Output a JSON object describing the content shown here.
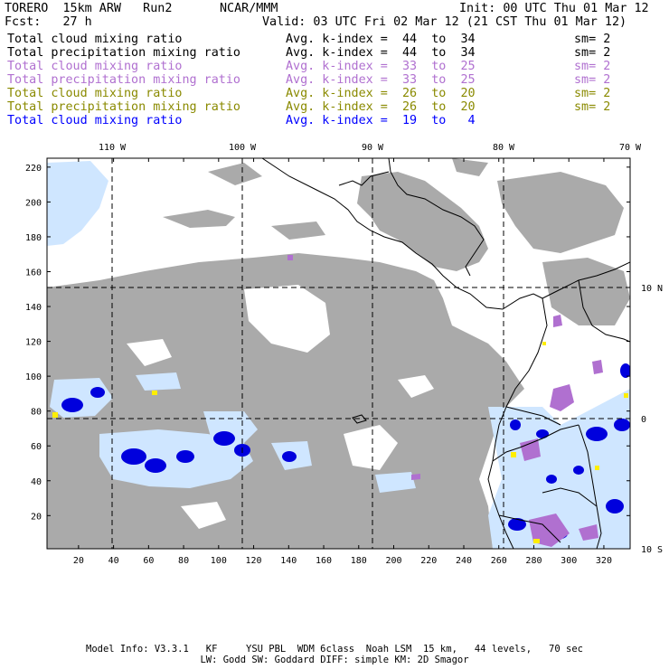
{
  "header": {
    "model": "TORERO  15km ARW   Run2",
    "org": "NCAR/MMM",
    "init": "Init: 00 UTC Thu 01 Mar 12",
    "fcst": "Fcst:   27 h",
    "valid": "Valid: 03 UTC Fri 02 Mar 12 (21 CST Thu 01 Mar 12)"
  },
  "fields": [
    {
      "name": "Total cloud mixing ratio",
      "kidx": "Avg. k-index =  44  to  34",
      "sm": "sm= 2",
      "color": "#000000"
    },
    {
      "name": "Total precipitation mixing ratio",
      "kidx": "Avg. k-index =  44  to  34",
      "sm": "sm= 2",
      "color": "#000000"
    },
    {
      "name": "Total cloud mixing ratio",
      "kidx": "Avg. k-index =  33  to  25",
      "sm": "sm= 2",
      "color": "#b070d0"
    },
    {
      "name": "Total precipitation mixing ratio",
      "kidx": "Avg. k-index =  33  to  25",
      "sm": "sm= 2",
      "color": "#b070d0"
    },
    {
      "name": "Total cloud mixing ratio",
      "kidx": "Avg. k-index =  26  to  20",
      "sm": "sm= 2",
      "color": "#8a8a00"
    },
    {
      "name": "Total precipitation mixing ratio",
      "kidx": "Avg. k-index =  26  to  20",
      "sm": "sm= 2",
      "color": "#8a8a00"
    },
    {
      "name": "Total cloud mixing ratio",
      "kidx": "Avg. k-index =  19  to   4",
      "sm": "",
      "color": "#0000ff"
    }
  ],
  "axes": {
    "top_labels": [
      "110 W",
      "100 W",
      "90 W",
      "80 W",
      "70 W"
    ],
    "right_labels": [
      "10 N",
      "0",
      "10 S"
    ],
    "left_ticks": [
      "220",
      "200",
      "180",
      "160",
      "140",
      "120",
      "100",
      "80",
      "60",
      "40",
      "20"
    ],
    "bottom_ticks": [
      "20",
      "40",
      "60",
      "80",
      "100",
      "120",
      "140",
      "160",
      "180",
      "200",
      "220",
      "240",
      "260",
      "280",
      "300",
      "320"
    ]
  },
  "footer": {
    "line1": "Model Info: V3.3.1   KF     YSU PBL  WDM 6class  Noah LSM  15 km,   44 levels,   70 sec",
    "line2": "LW: Godd SW: Goddard DIFF: simple KM: 2D Smagor"
  },
  "colors": {
    "gray_cloud": "#aaaaaa",
    "violet": "#b070d0",
    "yellow": "#ffee00",
    "light_blue": "#cfe6ff",
    "blue": "#0000dd",
    "coast": "#000000"
  }
}
